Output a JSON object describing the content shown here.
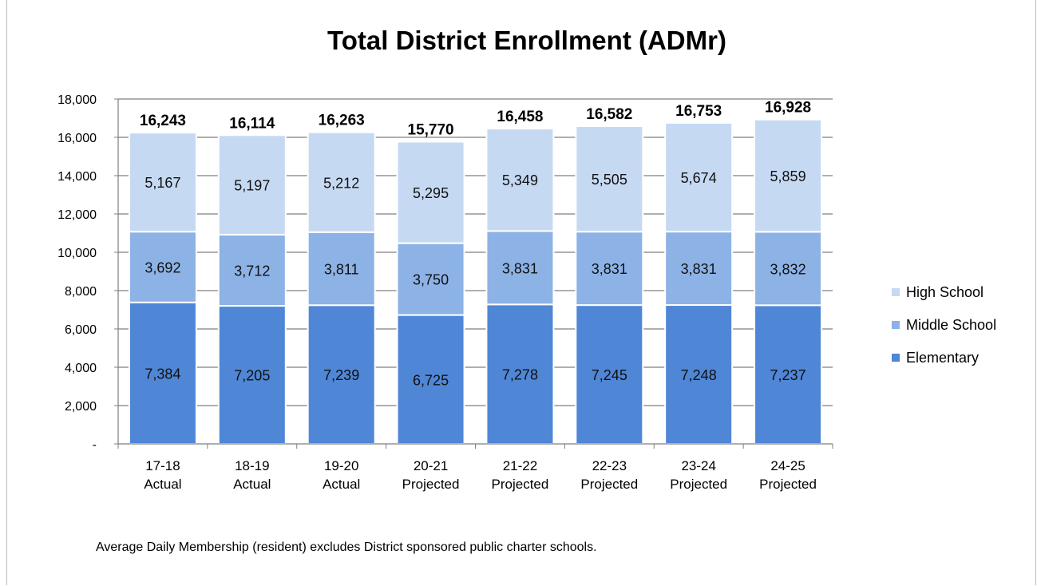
{
  "chart_data": {
    "type": "bar",
    "stacked": true,
    "title": "Total District Enrollment (ADMr)",
    "xlabel": "",
    "ylabel": "",
    "ylim": [
      0,
      18000
    ],
    "y_ticks": [
      "-",
      "2,000",
      "4,000",
      "6,000",
      "8,000",
      "10,000",
      "12,000",
      "14,000",
      "16,000",
      "18,000"
    ],
    "grid": true,
    "legend_position": "right",
    "categories": [
      [
        "17-18",
        "Actual"
      ],
      [
        "18-19",
        "Actual"
      ],
      [
        "19-20",
        "Actual"
      ],
      [
        "20-21",
        "Projected"
      ],
      [
        "21-22",
        "Projected"
      ],
      [
        "22-23",
        "Projected"
      ],
      [
        "23-24",
        "Projected"
      ],
      [
        "24-25",
        "Projected"
      ]
    ],
    "series": [
      {
        "name": "Elementary",
        "color": "#4f86d6",
        "values": [
          7384,
          7205,
          7239,
          6725,
          7278,
          7245,
          7248,
          7237
        ],
        "labels": [
          "7,384",
          "7,205",
          "7,239",
          "6,725",
          "7,278",
          "7,245",
          "7,248",
          "7,237"
        ]
      },
      {
        "name": "Middle School",
        "color": "#8cb2e6",
        "values": [
          3692,
          3712,
          3811,
          3750,
          3831,
          3831,
          3831,
          3832
        ],
        "labels": [
          "3,692",
          "3,712",
          "3,811",
          "3,750",
          "3,831",
          "3,831",
          "3,831",
          "3,832"
        ]
      },
      {
        "name": "High School",
        "color": "#c6d9f2",
        "values": [
          5167,
          5197,
          5212,
          5295,
          5349,
          5505,
          5674,
          5859
        ],
        "labels": [
          "5,167",
          "5,197",
          "5,212",
          "5,295",
          "5,349",
          "5,505",
          "5,674",
          "5,859"
        ]
      }
    ],
    "totals": [
      16243,
      16114,
      16263,
      15770,
      16458,
      16582,
      16753,
      16928
    ],
    "total_labels": [
      "16,243",
      "16,114",
      "16,263",
      "15,770",
      "16,458",
      "16,582",
      "16,753",
      "16,928"
    ],
    "legend_order": [
      "High School",
      "Middle School",
      "Elementary"
    ]
  },
  "footnote": "Average Daily Membership (resident) excludes District sponsored public charter schools."
}
